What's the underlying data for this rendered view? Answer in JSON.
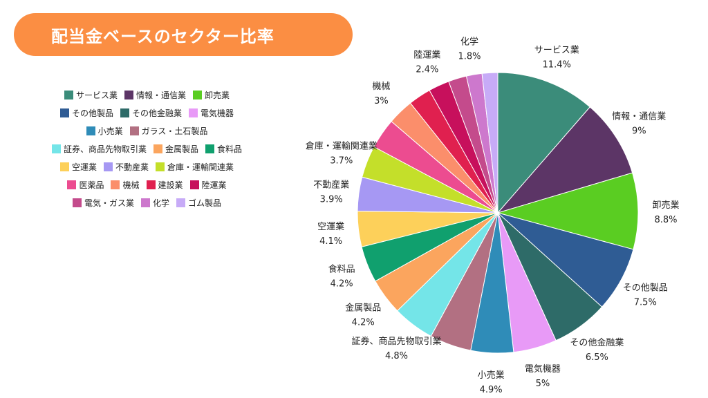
{
  "title": "配当金ベースのセクター比率",
  "chart_data": {
    "type": "pie",
    "start_angle": "top",
    "direction": "clockwise",
    "legend_position": "left",
    "slices": [
      {
        "name": "サービス業",
        "value": 11.4,
        "label": "11.4%",
        "color": "#3b8c7a"
      },
      {
        "name": "情報・通信業",
        "value": 9,
        "label": "9%",
        "color": "#5c3566"
      },
      {
        "name": "卸売業",
        "value": 8.8,
        "label": "8.8%",
        "color": "#5acd22"
      },
      {
        "name": "その他製品",
        "value": 7.5,
        "label": "7.5%",
        "color": "#2f5c94"
      },
      {
        "name": "その他金融業",
        "value": 6.5,
        "label": "6.5%",
        "color": "#2e6b68"
      },
      {
        "name": "電気機器",
        "value": 5,
        "label": "5%",
        "color": "#e89af7"
      },
      {
        "name": "小売業",
        "value": 4.9,
        "label": "4.9%",
        "color": "#2f8cb8"
      },
      {
        "name": "ガラス・土石製品",
        "value": 4.8,
        "label": "",
        "color": "#b27082"
      },
      {
        "name": "証券、商品先物取引業",
        "value": 4.8,
        "label": "4.8%",
        "color": "#74e5e8"
      },
      {
        "name": "金属製品",
        "value": 4.2,
        "label": "4.2%",
        "color": "#fba55e"
      },
      {
        "name": "食料品",
        "value": 4.2,
        "label": "4.2%",
        "color": "#10a06e"
      },
      {
        "name": "空運業",
        "value": 4.1,
        "label": "4.1%",
        "color": "#fdd05a"
      },
      {
        "name": "不動産業",
        "value": 3.9,
        "label": "3.9%",
        "color": "#a698f3"
      },
      {
        "name": "倉庫・運輸関連業",
        "value": 3.7,
        "label": "3.7%",
        "color": "#c4df2a"
      },
      {
        "name": "医薬品",
        "value": 3.5,
        "label": "",
        "color": "#ec4c90"
      },
      {
        "name": "機械",
        "value": 3,
        "label": "3%",
        "color": "#fb8e6b"
      },
      {
        "name": "建設業",
        "value": 2.6,
        "label": "",
        "color": "#e0204f"
      },
      {
        "name": "陸運業",
        "value": 2.4,
        "label": "2.4%",
        "color": "#c7105c"
      },
      {
        "name": "電気・ガス業",
        "value": 2.1,
        "label": "",
        "color": "#c44b8c"
      },
      {
        "name": "化学",
        "value": 1.8,
        "label": "1.8%",
        "color": "#cd78cd"
      },
      {
        "name": "ゴム製品",
        "value": 1.8,
        "label": "",
        "color": "#c7abf7"
      }
    ]
  },
  "legend_rows": [
    [
      "サービス業",
      "情報・通信業",
      "卸売業"
    ],
    [
      "その他製品",
      "その他金融業",
      "電気機器"
    ],
    [
      "小売業",
      "ガラス・土石製品"
    ],
    [
      "証券、商品先物取引業",
      "金属製品",
      "食料品"
    ],
    [
      "空運業",
      "不動産業",
      "倉庫・運輸関連業"
    ],
    [
      "医薬品",
      "機械",
      "建設業",
      "陸運業"
    ],
    [
      "電気・ガス業",
      "化学",
      "ゴム製品"
    ]
  ]
}
